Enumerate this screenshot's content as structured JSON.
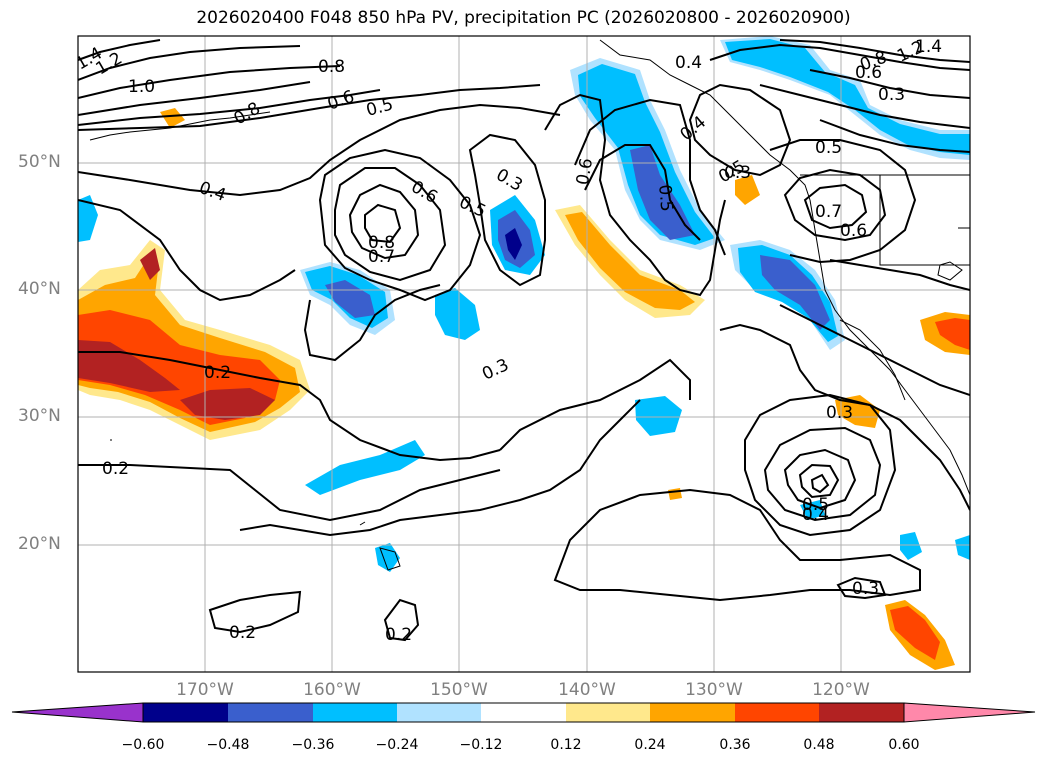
{
  "title": "2026020400 F048 850 hPa PV, precipitation PC (2026020800 - 2026020900)",
  "lat_labels": [
    "50°N",
    "40°N",
    "30°N",
    "20°N"
  ],
  "lon_labels": [
    "170°W",
    "160°W",
    "150°W",
    "140°W",
    "130°W",
    "120°W"
  ],
  "colorbar": {
    "ticks": [
      "−0.60",
      "−0.48",
      "−0.36",
      "−0.24",
      "−0.12",
      "0.12",
      "0.24",
      "0.36",
      "0.48",
      "0.60"
    ],
    "colors": [
      "#9932CC",
      "#00008B",
      "#3A5FCD",
      "#00BFFF",
      "#B0E2FF",
      "#FFFFFF",
      "#FFE88C",
      "#FFA500",
      "#FF4500",
      "#B22222",
      "#FF88AA"
    ]
  },
  "contour_labels": [
    {
      "text": "1.4"
    },
    {
      "text": "1.2"
    },
    {
      "text": "1.0"
    },
    {
      "text": "0.8"
    },
    {
      "text": "0.6"
    },
    {
      "text": "0.5"
    },
    {
      "text": "0.8"
    },
    {
      "text": "0.4"
    },
    {
      "text": "0.6"
    },
    {
      "text": "0.5"
    },
    {
      "text": "0.8"
    },
    {
      "text": "0.7"
    },
    {
      "text": "0.3"
    },
    {
      "text": "0.6"
    },
    {
      "text": "0.5"
    },
    {
      "text": "0.4"
    },
    {
      "text": "0.4"
    },
    {
      "text": "0.5"
    },
    {
      "text": "0.5"
    },
    {
      "text": "0.7"
    },
    {
      "text": "0.6"
    },
    {
      "text": "0.3"
    },
    {
      "text": "1.4"
    },
    {
      "text": "1.2"
    },
    {
      "text": "0.8"
    },
    {
      "text": "0.6"
    },
    {
      "text": "0.3"
    },
    {
      "text": "0.2"
    },
    {
      "text": "0.3"
    },
    {
      "text": "0.2"
    },
    {
      "text": "0.3"
    },
    {
      "text": "0.5"
    },
    {
      "text": "0.4"
    },
    {
      "text": "0.3"
    },
    {
      "text": "0.2"
    },
    {
      "text": "0.2"
    }
  ]
}
